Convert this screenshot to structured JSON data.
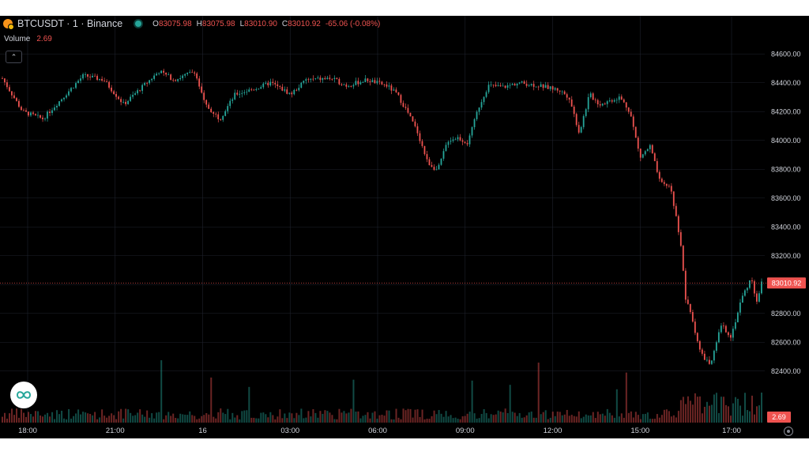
{
  "header": {
    "symbol_title": "BTCUSDT · 1 · Binance",
    "ohlc": [
      {
        "key": "O",
        "value": "83075.98"
      },
      {
        "key": "H",
        "value": "83075.98"
      },
      {
        "key": "L",
        "value": "83010.90"
      },
      {
        "key": "C",
        "value": "83010.92"
      }
    ],
    "change": "-65.06 (-0.08%)"
  },
  "volume": {
    "label": "Volume",
    "value": "2.69"
  },
  "colors": {
    "up": "#26a69a",
    "down": "#ef5350",
    "background": "#000000",
    "grid": "#1e222d",
    "text": "#d1d4dc"
  },
  "icons": {
    "symbol": "btc-binance-icon",
    "live": "live-status-dot-icon",
    "collapse": "chevron-up-icon",
    "logo": "logo-icon",
    "settings": "gear-icon"
  },
  "chart_data": {
    "type": "candlestick",
    "price_axis": {
      "ticks": [
        "84600.00",
        "84400.00",
        "84200.00",
        "84000.00",
        "83800.00",
        "83600.00",
        "83400.00",
        "83200.00",
        "83000.00",
        "82800.00",
        "82600.00",
        "82400.00"
      ],
      "range": [
        82300,
        84700
      ]
    },
    "time_axis": {
      "ticks": [
        "18:00",
        "21:00",
        "16",
        "03:00",
        "06:00",
        "09:00",
        "12:00",
        "15:00",
        "17:00"
      ]
    },
    "last_price": "83010.92",
    "last_volume": "2.69",
    "close_path": [
      [
        0,
        84430
      ],
      [
        4,
        84200
      ],
      [
        8,
        84150
      ],
      [
        12,
        84300
      ],
      [
        16,
        84450
      ],
      [
        20,
        84420
      ],
      [
        24,
        84250
      ],
      [
        27,
        84350
      ],
      [
        31,
        84480
      ],
      [
        34,
        84420
      ],
      [
        38,
        84480
      ],
      [
        40,
        84250
      ],
      [
        43,
        84150
      ],
      [
        46,
        84320
      ],
      [
        50,
        84360
      ],
      [
        53,
        84400
      ],
      [
        57,
        84320
      ],
      [
        60,
        84420
      ],
      [
        65,
        84430
      ],
      [
        68,
        84380
      ],
      [
        72,
        84420
      ],
      [
        76,
        84380
      ],
      [
        78,
        84320
      ],
      [
        80,
        84200
      ],
      [
        82,
        84060
      ],
      [
        84,
        83850
      ],
      [
        86,
        83790
      ],
      [
        88,
        84000
      ],
      [
        90,
        84020
      ],
      [
        92,
        83980
      ],
      [
        94,
        84220
      ],
      [
        96,
        84380
      ],
      [
        99,
        84370
      ],
      [
        102,
        84400
      ],
      [
        106,
        84380
      ],
      [
        110,
        84350
      ],
      [
        112,
        84300
      ],
      [
        114,
        84050
      ],
      [
        116,
        84320
      ],
      [
        118,
        84250
      ],
      [
        122,
        84300
      ],
      [
        124,
        84200
      ],
      [
        126,
        83880
      ],
      [
        128,
        83960
      ],
      [
        130,
        83700
      ],
      [
        132,
        83680
      ],
      [
        134,
        83300
      ],
      [
        135,
        82900
      ],
      [
        136,
        82800
      ],
      [
        138,
        82520
      ],
      [
        140,
        82440
      ],
      [
        142,
        82720
      ],
      [
        144,
        82640
      ],
      [
        146,
        82900
      ],
      [
        148,
        83050
      ],
      [
        149,
        82880
      ],
      [
        150,
        83010
      ]
    ]
  }
}
